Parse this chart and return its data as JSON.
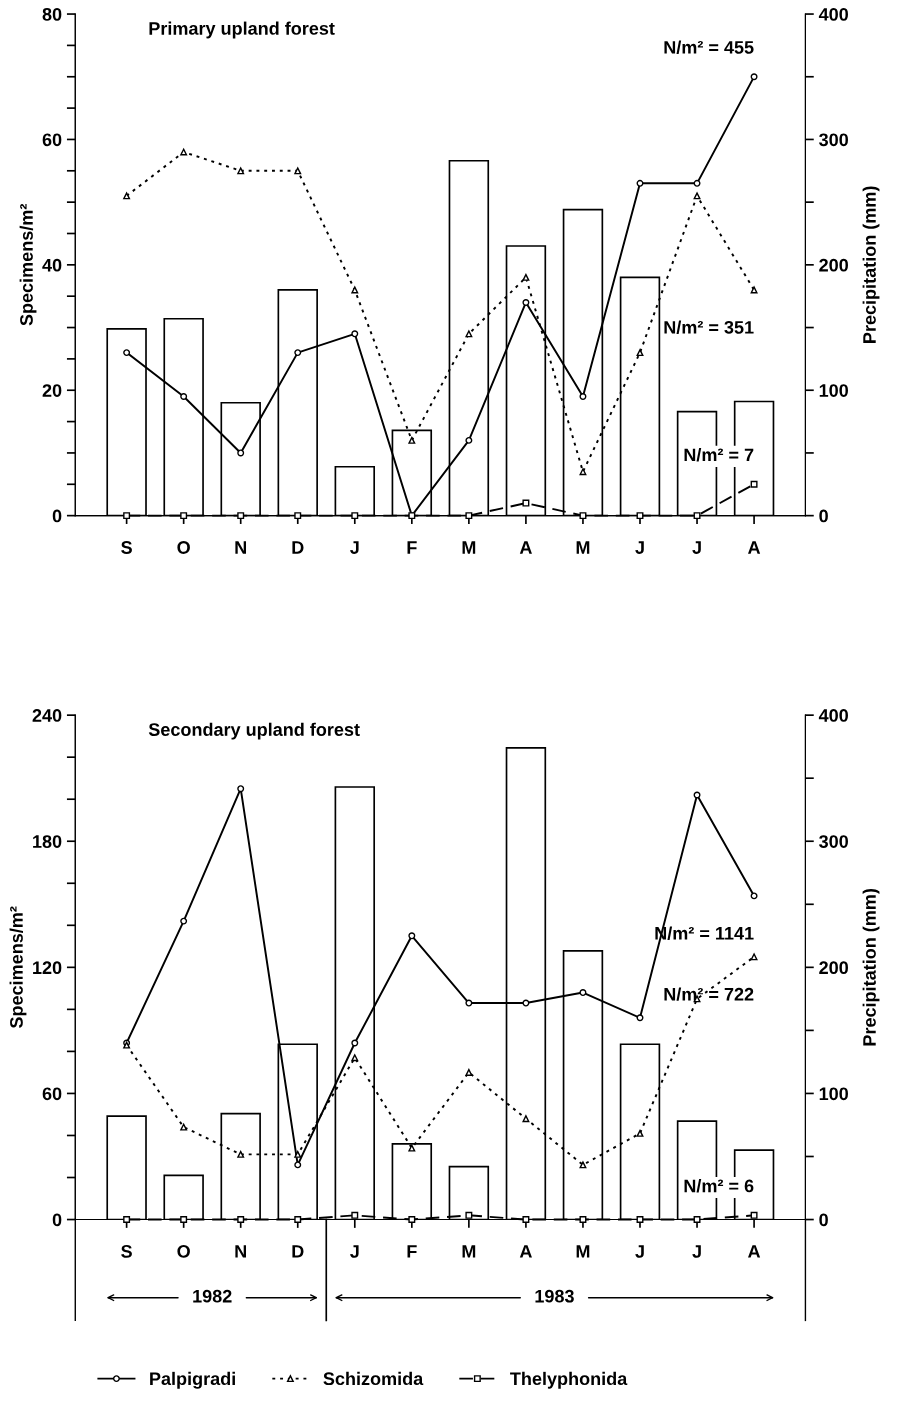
{
  "chart_data": [
    {
      "type": "line",
      "title": "Primary upland forest",
      "ylabel": "Specimens/m²",
      "y2label": "Precipitation (mm)",
      "categories": [
        "S",
        "O",
        "N",
        "D",
        "J",
        "F",
        "M",
        "A",
        "M",
        "J",
        "J",
        "A"
      ],
      "series": [
        {
          "type": "bar",
          "axis": "y2",
          "color": "#ffffff",
          "values": [
            149,
            157,
            90,
            180,
            39,
            68,
            283,
            215,
            244,
            190,
            83,
            91
          ]
        },
        {
          "color": "#000000",
          "marker": "circle",
          "line_style": "solid",
          "values": [
            26,
            19,
            10,
            26,
            29,
            0,
            12,
            34,
            19,
            53,
            53,
            70
          ]
        },
        {
          "color": "#000000",
          "marker": "triangle",
          "line_style": "dotted",
          "values": [
            51,
            58,
            55,
            55,
            36,
            12,
            29,
            38,
            7,
            26,
            51,
            36
          ]
        },
        {
          "color": "#000000",
          "marker": "square",
          "line_style": "dashed",
          "values": [
            0,
            0,
            0,
            0,
            0,
            0,
            0,
            2,
            0,
            0,
            0,
            5
          ]
        }
      ],
      "ylim": [
        0,
        80
      ],
      "yticks": [
        0,
        {
          "value": 5,
          "label": null
        },
        {
          "value": 10,
          "label": null
        },
        {
          "value": 15,
          "label": null
        },
        20,
        {
          "value": 25,
          "label": null
        },
        {
          "value": 30,
          "label": null
        },
        {
          "value": 35,
          "label": null
        },
        40,
        {
          "value": 45,
          "label": null
        },
        {
          "value": 50,
          "label": null
        },
        {
          "value": 55,
          "label": null
        },
        60,
        {
          "value": 65,
          "label": null
        },
        {
          "value": 70,
          "label": null
        },
        {
          "value": 75,
          "label": null
        },
        80
      ],
      "y2lim": [
        0,
        400
      ],
      "y2ticks": [
        0,
        {
          "value": 50,
          "label": null
        },
        100,
        {
          "value": 150,
          "label": null
        },
        200,
        {
          "value": 250,
          "label": null
        },
        300,
        {
          "value": 350,
          "label": null
        },
        400
      ],
      "annotations": [
        "N/m² = 455",
        "N/m² = 351",
        "N/m² = 7"
      ],
      "grid": false,
      "legend": false
    },
    {
      "type": "line",
      "title": "Secondary upland forest",
      "ylabel": "Specimens/m²",
      "y2label": "Precipitation (mm)",
      "categories": [
        "S",
        "O",
        "N",
        "D",
        "J",
        "F",
        "M",
        "A",
        "M",
        "J",
        "J",
        "A"
      ],
      "series": [
        {
          "type": "bar",
          "axis": "y2",
          "color": "#ffffff",
          "values": [
            82,
            35,
            84,
            139,
            343,
            60,
            42,
            374,
            213,
            139,
            78,
            55
          ]
        },
        {
          "name": "Palpigradi",
          "color": "#000000",
          "marker": "circle",
          "line_style": "solid",
          "values": [
            84,
            142,
            205,
            26,
            84,
            135,
            103,
            103,
            108,
            96,
            202,
            154
          ]
        },
        {
          "name": "Schizomida",
          "color": "#000000",
          "marker": "triangle",
          "line_style": "dotted",
          "values": [
            83,
            44,
            31,
            31,
            77,
            34,
            70,
            48,
            26,
            41,
            105,
            125
          ]
        },
        {
          "name": "Thelyphonida",
          "color": "#000000",
          "marker": "square",
          "line_style": "dashed",
          "values": [
            0,
            0,
            0,
            0,
            2,
            0,
            2,
            0,
            0,
            0,
            0,
            2
          ]
        }
      ],
      "ylim": [
        0,
        240
      ],
      "yticks": [
        0,
        {
          "value": 20,
          "label": null
        },
        {
          "value": 40,
          "label": null
        },
        60,
        {
          "value": 80,
          "label": null
        },
        {
          "value": 100,
          "label": null
        },
        120,
        {
          "value": 140,
          "label": null
        },
        {
          "value": 160,
          "label": null
        },
        180,
        {
          "value": 200,
          "label": null
        },
        {
          "value": 220,
          "label": null
        },
        240
      ],
      "y2lim": [
        0,
        400
      ],
      "y2ticks": [
        0,
        {
          "value": 50,
          "label": null
        },
        100,
        {
          "value": 150,
          "label": null
        },
        200,
        {
          "value": 250,
          "label": null
        },
        300,
        {
          "value": 350,
          "label": null
        },
        400
      ],
      "annotations": [
        "N/m² = 1141",
        "N/m² = 722",
        "N/m² = 6",
        "1982",
        "1983"
      ],
      "grid": false,
      "legend": "bottom"
    }
  ]
}
